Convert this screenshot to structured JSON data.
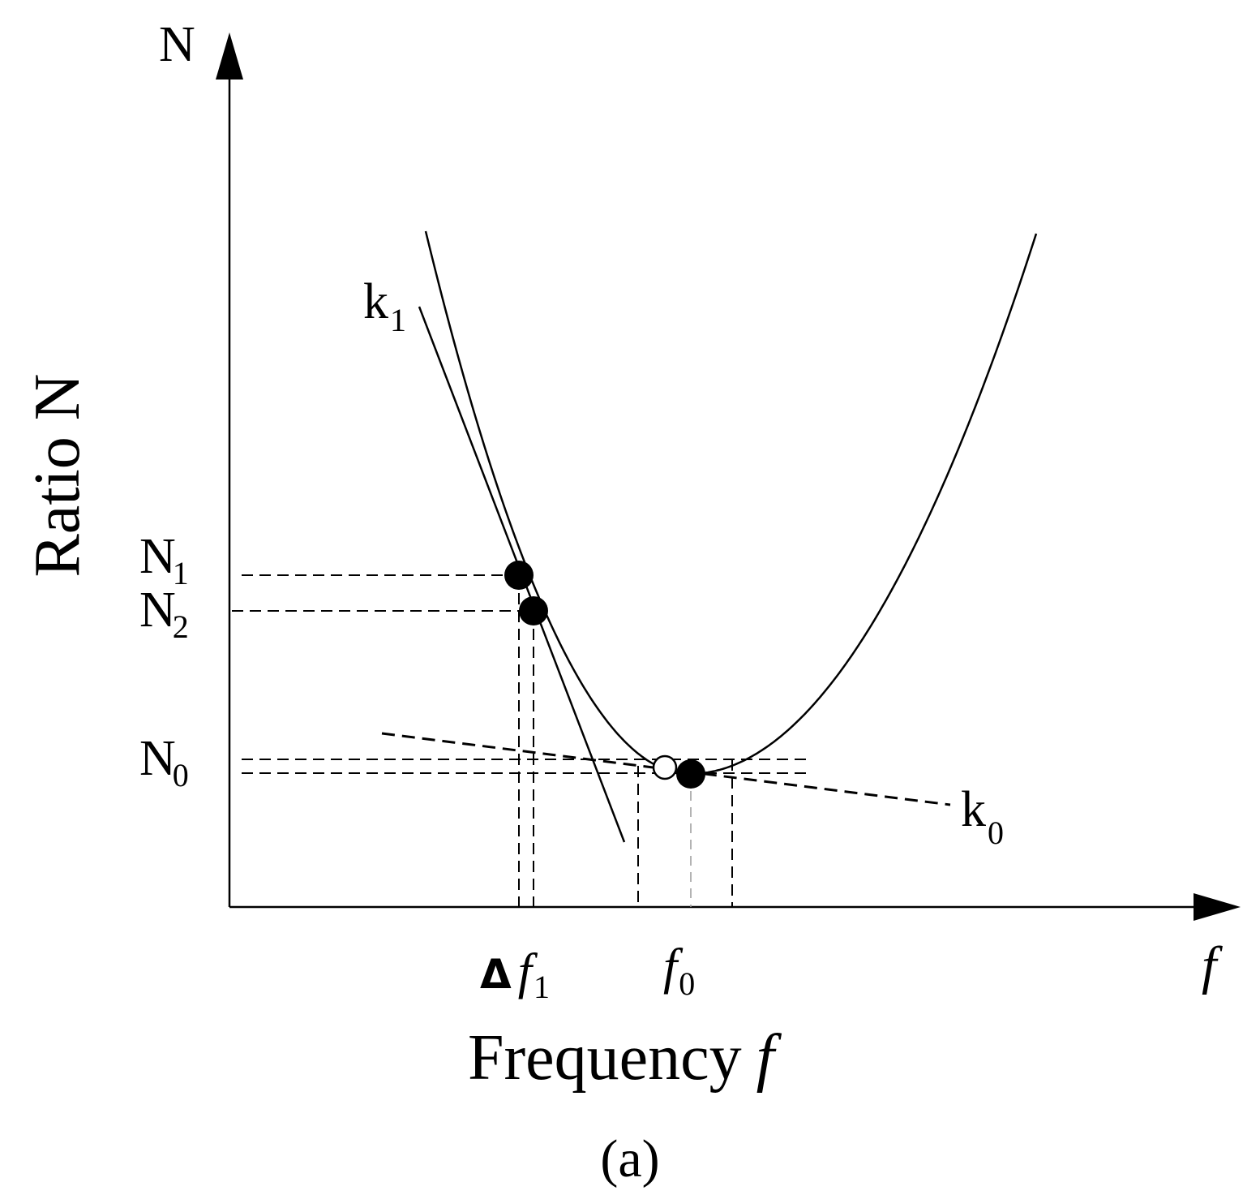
{
  "figure": {
    "y_axis_symbol": "N",
    "y_axis_title": "Ratio N",
    "x_axis_symbol": "f",
    "x_axis_title_word": "Frequency",
    "x_axis_title_symbol": "f",
    "caption": "(a)",
    "labels": {
      "N1_main": "N",
      "N1_sub": "1",
      "N2_main": "N",
      "N2_sub": "2",
      "N0_main": "N",
      "N0_sub": "0",
      "k1_main": "k",
      "k1_sub": "1",
      "k0_main": "k",
      "k0_sub": "0",
      "delta_symbol": "Δ",
      "f1_main": "f",
      "f1_sub": "1",
      "f0_main": "f",
      "f0_sub": "0"
    },
    "markers": {
      "filled": [
        "point-N1",
        "point-N2",
        "point-minimum"
      ],
      "hollow": [
        "point-estimate"
      ]
    }
  }
}
